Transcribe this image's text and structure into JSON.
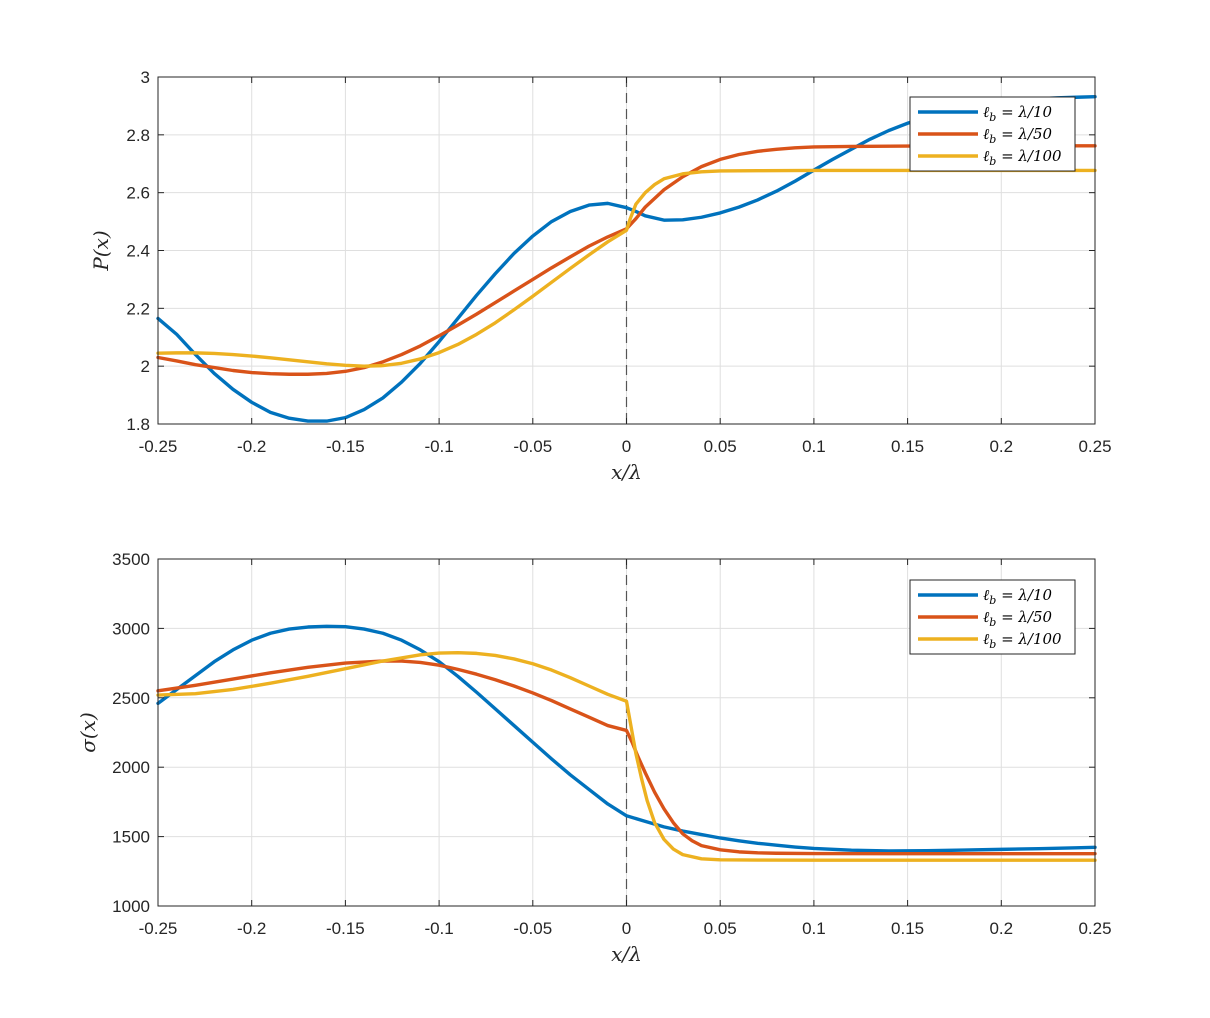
{
  "chart_data": [
    {
      "type": "line",
      "id": "top",
      "ylabel": "P(x)",
      "xlabel": "x/λ",
      "xlim": [
        -0.25,
        0.25
      ],
      "ylim": [
        1.8,
        3.0
      ],
      "xticks": [
        -0.25,
        -0.2,
        -0.15,
        -0.1,
        -0.05,
        0,
        0.05,
        0.1,
        0.15,
        0.2,
        0.25
      ],
      "xtick_labels": [
        "-0.25",
        "-0.2",
        "-0.15",
        "-0.1",
        "-0.05",
        "0",
        "0.05",
        "0.1",
        "0.15",
        "0.2",
        "0.25"
      ],
      "yticks": [
        1.8,
        2.0,
        2.2,
        2.4,
        2.6,
        2.8,
        3.0
      ],
      "ytick_labels": [
        "1.8",
        "2",
        "2.2",
        "2.4",
        "2.6",
        "2.8",
        "3"
      ],
      "grid": true,
      "vertical_reference_x": 0,
      "legend_position": "top-right",
      "series": [
        {
          "name": "ℓ_b = λ/10",
          "color": "#0072BD",
          "points": [
            [
              -0.25,
              2.165
            ],
            [
              -0.24,
              2.11
            ],
            [
              -0.23,
              2.04
            ],
            [
              -0.22,
              1.975
            ],
            [
              -0.21,
              1.92
            ],
            [
              -0.2,
              1.875
            ],
            [
              -0.19,
              1.84
            ],
            [
              -0.18,
              1.82
            ],
            [
              -0.17,
              1.81
            ],
            [
              -0.16,
              1.81
            ],
            [
              -0.15,
              1.822
            ],
            [
              -0.14,
              1.85
            ],
            [
              -0.13,
              1.89
            ],
            [
              -0.12,
              1.945
            ],
            [
              -0.11,
              2.01
            ],
            [
              -0.1,
              2.085
            ],
            [
              -0.09,
              2.165
            ],
            [
              -0.08,
              2.245
            ],
            [
              -0.07,
              2.32
            ],
            [
              -0.06,
              2.39
            ],
            [
              -0.05,
              2.45
            ],
            [
              -0.04,
              2.5
            ],
            [
              -0.03,
              2.535
            ],
            [
              -0.02,
              2.557
            ],
            [
              -0.01,
              2.563
            ],
            [
              0,
              2.548
            ],
            [
              0.005,
              2.535
            ],
            [
              0.01,
              2.52
            ],
            [
              0.02,
              2.505
            ],
            [
              0.03,
              2.506
            ],
            [
              0.04,
              2.515
            ],
            [
              0.05,
              2.53
            ],
            [
              0.06,
              2.55
            ],
            [
              0.07,
              2.575
            ],
            [
              0.08,
              2.605
            ],
            [
              0.09,
              2.64
            ],
            [
              0.1,
              2.678
            ],
            [
              0.11,
              2.715
            ],
            [
              0.12,
              2.75
            ],
            [
              0.13,
              2.785
            ],
            [
              0.14,
              2.815
            ],
            [
              0.15,
              2.84
            ],
            [
              0.16,
              2.862
            ],
            [
              0.17,
              2.88
            ],
            [
              0.18,
              2.895
            ],
            [
              0.19,
              2.906
            ],
            [
              0.2,
              2.914
            ],
            [
              0.21,
              2.92
            ],
            [
              0.22,
              2.925
            ],
            [
              0.23,
              2.928
            ],
            [
              0.24,
              2.93
            ],
            [
              0.25,
              2.932
            ]
          ]
        },
        {
          "name": "ℓ_b = λ/50",
          "color": "#D95319",
          "points": [
            [
              -0.25,
              2.03
            ],
            [
              -0.24,
              2.018
            ],
            [
              -0.23,
              2.005
            ],
            [
              -0.22,
              1.995
            ],
            [
              -0.21,
              1.985
            ],
            [
              -0.2,
              1.978
            ],
            [
              -0.19,
              1.974
            ],
            [
              -0.18,
              1.972
            ],
            [
              -0.17,
              1.972
            ],
            [
              -0.16,
              1.975
            ],
            [
              -0.15,
              1.982
            ],
            [
              -0.14,
              1.995
            ],
            [
              -0.13,
              2.015
            ],
            [
              -0.12,
              2.04
            ],
            [
              -0.11,
              2.07
            ],
            [
              -0.1,
              2.105
            ],
            [
              -0.09,
              2.142
            ],
            [
              -0.08,
              2.18
            ],
            [
              -0.07,
              2.22
            ],
            [
              -0.06,
              2.26
            ],
            [
              -0.05,
              2.3
            ],
            [
              -0.04,
              2.34
            ],
            [
              -0.03,
              2.378
            ],
            [
              -0.02,
              2.415
            ],
            [
              -0.01,
              2.447
            ],
            [
              0,
              2.475
            ],
            [
              0.005,
              2.51
            ],
            [
              0.01,
              2.55
            ],
            [
              0.02,
              2.61
            ],
            [
              0.03,
              2.655
            ],
            [
              0.04,
              2.69
            ],
            [
              0.05,
              2.715
            ],
            [
              0.06,
              2.732
            ],
            [
              0.07,
              2.743
            ],
            [
              0.08,
              2.75
            ],
            [
              0.09,
              2.755
            ],
            [
              0.1,
              2.758
            ],
            [
              0.12,
              2.76
            ],
            [
              0.15,
              2.761
            ],
            [
              0.2,
              2.762
            ],
            [
              0.25,
              2.762
            ]
          ]
        },
        {
          "name": "ℓ_b = λ/100",
          "color": "#EDB120",
          "points": [
            [
              -0.25,
              2.045
            ],
            [
              -0.24,
              2.046
            ],
            [
              -0.23,
              2.046
            ],
            [
              -0.22,
              2.044
            ],
            [
              -0.21,
              2.04
            ],
            [
              -0.2,
              2.035
            ],
            [
              -0.19,
              2.029
            ],
            [
              -0.18,
              2.022
            ],
            [
              -0.17,
              2.015
            ],
            [
              -0.16,
              2.008
            ],
            [
              -0.15,
              2.003
            ],
            [
              -0.14,
              2.0
            ],
            [
              -0.13,
              2.002
            ],
            [
              -0.12,
              2.01
            ],
            [
              -0.11,
              2.025
            ],
            [
              -0.1,
              2.047
            ],
            [
              -0.09,
              2.075
            ],
            [
              -0.08,
              2.11
            ],
            [
              -0.07,
              2.15
            ],
            [
              -0.06,
              2.195
            ],
            [
              -0.05,
              2.242
            ],
            [
              -0.04,
              2.29
            ],
            [
              -0.03,
              2.338
            ],
            [
              -0.02,
              2.385
            ],
            [
              -0.01,
              2.43
            ],
            [
              0,
              2.47
            ],
            [
              0.002,
              2.51
            ],
            [
              0.005,
              2.56
            ],
            [
              0.01,
              2.6
            ],
            [
              0.015,
              2.628
            ],
            [
              0.02,
              2.648
            ],
            [
              0.03,
              2.665
            ],
            [
              0.04,
              2.672
            ],
            [
              0.05,
              2.675
            ],
            [
              0.07,
              2.676
            ],
            [
              0.1,
              2.677
            ],
            [
              0.15,
              2.677
            ],
            [
              0.2,
              2.677
            ],
            [
              0.25,
              2.677
            ]
          ]
        }
      ]
    },
    {
      "type": "line",
      "id": "bottom",
      "ylabel": "σ(x)",
      "xlabel": "x/λ",
      "xlim": [
        -0.25,
        0.25
      ],
      "ylim": [
        1000,
        3500
      ],
      "xticks": [
        -0.25,
        -0.2,
        -0.15,
        -0.1,
        -0.05,
        0,
        0.05,
        0.1,
        0.15,
        0.2,
        0.25
      ],
      "xtick_labels": [
        "-0.25",
        "-0.2",
        "-0.15",
        "-0.1",
        "-0.05",
        "0",
        "0.05",
        "0.1",
        "0.15",
        "0.2",
        "0.25"
      ],
      "yticks": [
        1000,
        1500,
        2000,
        2500,
        3000,
        3500
      ],
      "ytick_labels": [
        "1000",
        "1500",
        "2000",
        "2500",
        "3000",
        "3500"
      ],
      "grid": true,
      "vertical_reference_x": 0,
      "legend_position": "top-right",
      "series": [
        {
          "name": "ℓ_b = λ/10",
          "color": "#0072BD",
          "points": [
            [
              -0.25,
              2460
            ],
            [
              -0.24,
              2560
            ],
            [
              -0.23,
              2660
            ],
            [
              -0.22,
              2760
            ],
            [
              -0.21,
              2845
            ],
            [
              -0.2,
              2915
            ],
            [
              -0.19,
              2965
            ],
            [
              -0.18,
              2995
            ],
            [
              -0.17,
              3010
            ],
            [
              -0.16,
              3015
            ],
            [
              -0.15,
              3012
            ],
            [
              -0.14,
              2995
            ],
            [
              -0.13,
              2965
            ],
            [
              -0.12,
              2915
            ],
            [
              -0.11,
              2845
            ],
            [
              -0.1,
              2760
            ],
            [
              -0.09,
              2655
            ],
            [
              -0.08,
              2540
            ],
            [
              -0.07,
              2420
            ],
            [
              -0.06,
              2300
            ],
            [
              -0.05,
              2180
            ],
            [
              -0.04,
              2060
            ],
            [
              -0.03,
              1945
            ],
            [
              -0.02,
              1840
            ],
            [
              -0.01,
              1735
            ],
            [
              0,
              1650
            ],
            [
              0.01,
              1610
            ],
            [
              0.02,
              1570
            ],
            [
              0.03,
              1540
            ],
            [
              0.04,
              1515
            ],
            [
              0.05,
              1490
            ],
            [
              0.06,
              1470
            ],
            [
              0.07,
              1452
            ],
            [
              0.08,
              1438
            ],
            [
              0.09,
              1425
            ],
            [
              0.1,
              1415
            ],
            [
              0.12,
              1402
            ],
            [
              0.14,
              1397
            ],
            [
              0.16,
              1398
            ],
            [
              0.18,
              1403
            ],
            [
              0.2,
              1408
            ],
            [
              0.22,
              1413
            ],
            [
              0.24,
              1419
            ],
            [
              0.25,
              1423
            ]
          ]
        },
        {
          "name": "ℓ_b = λ/50",
          "color": "#D95319",
          "points": [
            [
              -0.25,
              2550
            ],
            [
              -0.23,
              2590
            ],
            [
              -0.21,
              2635
            ],
            [
              -0.19,
              2680
            ],
            [
              -0.17,
              2720
            ],
            [
              -0.15,
              2750
            ],
            [
              -0.13,
              2765
            ],
            [
              -0.12,
              2765
            ],
            [
              -0.11,
              2755
            ],
            [
              -0.1,
              2735
            ],
            [
              -0.09,
              2705
            ],
            [
              -0.08,
              2670
            ],
            [
              -0.07,
              2630
            ],
            [
              -0.06,
              2585
            ],
            [
              -0.05,
              2535
            ],
            [
              -0.04,
              2480
            ],
            [
              -0.03,
              2420
            ],
            [
              -0.02,
              2360
            ],
            [
              -0.01,
              2300
            ],
            [
              0,
              2265
            ],
            [
              0.003,
              2180
            ],
            [
              0.006,
              2080
            ],
            [
              0.01,
              1960
            ],
            [
              0.015,
              1820
            ],
            [
              0.02,
              1700
            ],
            [
              0.025,
              1600
            ],
            [
              0.03,
              1520
            ],
            [
              0.035,
              1470
            ],
            [
              0.04,
              1435
            ],
            [
              0.05,
              1405
            ],
            [
              0.06,
              1390
            ],
            [
              0.07,
              1383
            ],
            [
              0.08,
              1380
            ],
            [
              0.1,
              1378
            ],
            [
              0.15,
              1377
            ],
            [
              0.2,
              1377
            ],
            [
              0.25,
              1377
            ]
          ]
        },
        {
          "name": "ℓ_b = λ/100",
          "color": "#EDB120",
          "points": [
            [
              -0.25,
              2520
            ],
            [
              -0.23,
              2530
            ],
            [
              -0.21,
              2560
            ],
            [
              -0.19,
              2605
            ],
            [
              -0.17,
              2655
            ],
            [
              -0.15,
              2710
            ],
            [
              -0.13,
              2765
            ],
            [
              -0.11,
              2810
            ],
            [
              -0.1,
              2822
            ],
            [
              -0.09,
              2825
            ],
            [
              -0.08,
              2820
            ],
            [
              -0.07,
              2805
            ],
            [
              -0.06,
              2780
            ],
            [
              -0.05,
              2745
            ],
            [
              -0.04,
              2700
            ],
            [
              -0.03,
              2645
            ],
            [
              -0.02,
              2585
            ],
            [
              -0.01,
              2525
            ],
            [
              0,
              2475
            ],
            [
              0.001,
              2400
            ],
            [
              0.003,
              2250
            ],
            [
              0.005,
              2100
            ],
            [
              0.008,
              1920
            ],
            [
              0.011,
              1760
            ],
            [
              0.015,
              1600
            ],
            [
              0.02,
              1480
            ],
            [
              0.025,
              1410
            ],
            [
              0.03,
              1370
            ],
            [
              0.04,
              1340
            ],
            [
              0.05,
              1333
            ],
            [
              0.07,
              1331
            ],
            [
              0.1,
              1330
            ],
            [
              0.15,
              1330
            ],
            [
              0.2,
              1330
            ],
            [
              0.25,
              1330
            ]
          ]
        }
      ]
    }
  ]
}
